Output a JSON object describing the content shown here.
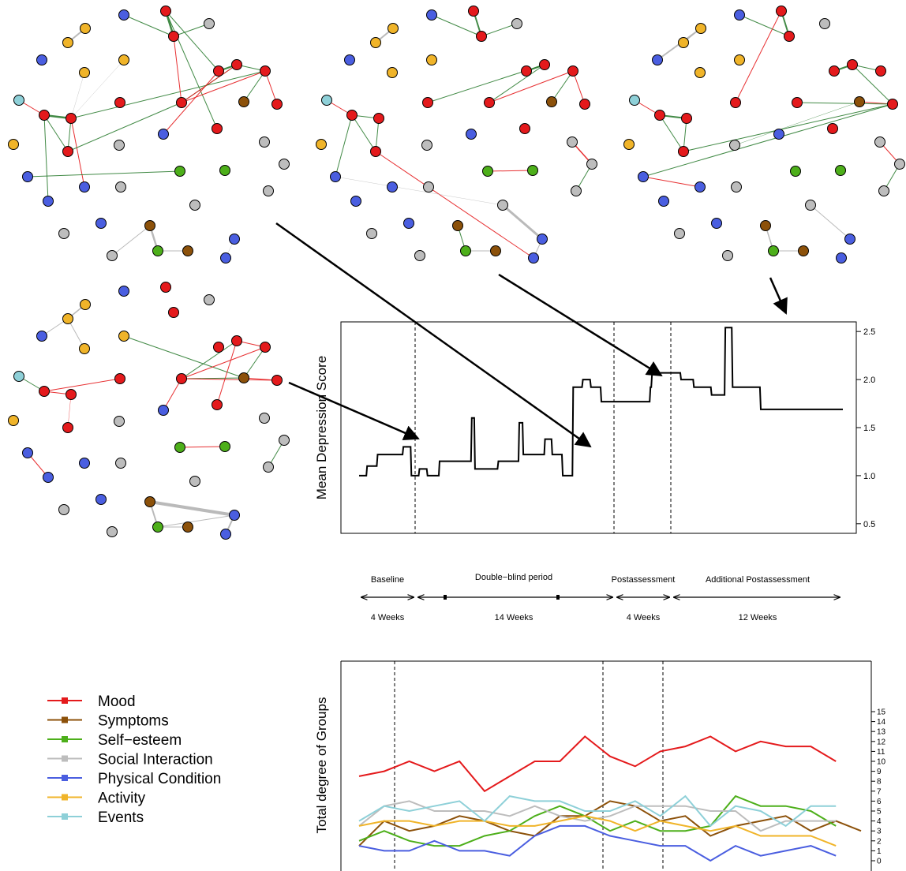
{
  "colors": {
    "Mood": "#e41a1c",
    "Symptoms": "#8c510a",
    "Self-esteem": "#4daf1a",
    "Social Interaction": "#bdbdbd",
    "Physical Condition": "#4a5ee0",
    "Activity": "#f0b429",
    "Events": "#8ed0d8",
    "edge_pos": "#2e7d32",
    "edge_neg": "#e41a1c",
    "edge_gray": "#b3b3b3"
  },
  "chart_data": [
    {
      "type": "line",
      "ylabel": "Mean Depression Score",
      "ylim": [
        0.4,
        2.6
      ],
      "yticks": [
        "0.5",
        "1.0",
        "1.5",
        "2.0",
        "2.5"
      ],
      "x": [
        0,
        9,
        10,
        22,
        23,
        54,
        55,
        64,
        65,
        74,
        75,
        84,
        85,
        99,
        100,
        139,
        140,
        143,
        144,
        158,
        159,
        172,
        173,
        183,
        184,
        198,
        199,
        203,
        204,
        230,
        231,
        239,
        240,
        252,
        253,
        265,
        266,
        277,
        278,
        287,
        288,
        300,
        301,
        361,
        362,
        363,
        364,
        399,
        400,
        415,
        416,
        437,
        438,
        440,
        441,
        454,
        455,
        463,
        464,
        498,
        499,
        517,
        518,
        534,
        535,
        563,
        564,
        582,
        583,
        601
      ],
      "y": [
        1.0,
        1.0,
        1.1,
        1.1,
        1.22,
        1.22,
        1.3,
        1.3,
        1.0,
        1.0,
        1.07,
        1.07,
        1.0,
        1.0,
        1.15,
        1.15,
        1.6,
        1.6,
        1.07,
        1.07,
        1.07,
        1.07,
        1.15,
        1.15,
        1.15,
        1.15,
        1.55,
        1.55,
        1.22,
        1.22,
        1.38,
        1.38,
        1.22,
        1.22,
        1.0,
        1.0,
        1.92,
        1.92,
        2.0,
        2.0,
        1.92,
        1.92,
        1.77,
        1.77,
        1.92,
        1.92,
        2.07,
        2.07,
        2.0,
        2.0,
        1.92,
        1.92,
        1.84,
        1.84,
        1.84,
        1.84,
        2.54,
        2.54,
        1.92,
        1.92,
        1.69,
        1.69,
        1.69,
        1.69,
        1.69,
        1.69,
        1.69,
        1.69,
        1.69,
        1.69
      ],
      "vlines": [
        2,
        12,
        15
      ],
      "xlim": [
        0,
        25
      ]
    },
    {
      "type": "line",
      "ylabel": "Total degree of Groups",
      "ylim": [
        -0.5,
        15.5
      ],
      "yticks": [
        "0",
        "1",
        "2",
        "3",
        "4",
        "5",
        "6",
        "7",
        "8",
        "9",
        "10",
        "11",
        "12",
        "13",
        "14",
        "15"
      ],
      "x": [
        0,
        1,
        2,
        3,
        4,
        5,
        6,
        7,
        8,
        9,
        10,
        11,
        12,
        13,
        14,
        15,
        16,
        17,
        18,
        19,
        20,
        21,
        22,
        23
      ],
      "vlines": [
        1.5,
        13.5,
        17
      ],
      "series": [
        {
          "name": "Mood",
          "values": [
            8.5,
            9,
            10,
            9,
            10,
            7,
            8.5,
            10,
            10,
            12.5,
            10.5,
            9.5,
            11,
            11.5,
            12.5,
            11,
            12,
            11.5,
            11.5,
            10,
            null,
            null,
            null,
            null
          ]
        },
        {
          "name": "Symptoms",
          "values": [
            1.5,
            4,
            3,
            3.5,
            4.5,
            4,
            3,
            2.5,
            4.5,
            4.5,
            6,
            5.5,
            4,
            4.5,
            2.5,
            3.5,
            4,
            4.5,
            3,
            4,
            3,
            null,
            null,
            null
          ]
        },
        {
          "name": "Self-esteem",
          "values": [
            2,
            3,
            2,
            1.5,
            1.5,
            2.5,
            3,
            4.5,
            5.5,
            4.5,
            3,
            4,
            3,
            3,
            3.5,
            6.5,
            5.5,
            5.5,
            5,
            3.5,
            null,
            null,
            null,
            null
          ]
        },
        {
          "name": "Social Interaction",
          "values": [
            3.5,
            5.5,
            6,
            5,
            5,
            5,
            4.5,
            5.5,
            4.5,
            4,
            4.5,
            5.5,
            5.5,
            5.5,
            5,
            5,
            3,
            4,
            4,
            4,
            null,
            null,
            null,
            null
          ]
        },
        {
          "name": "Physical Condition",
          "values": [
            1.5,
            1,
            1,
            2,
            1,
            1,
            0.5,
            2.5,
            3.5,
            3.5,
            2.5,
            2,
            1.5,
            1.5,
            0,
            1.5,
            0.5,
            1,
            1.5,
            0.5,
            null,
            null,
            null,
            null
          ]
        },
        {
          "name": "Activity",
          "values": [
            3.5,
            4,
            4,
            3.5,
            4,
            4,
            3.5,
            3.5,
            4,
            4.5,
            4,
            3,
            4,
            3.5,
            3,
            3.5,
            2.5,
            2.5,
            2.5,
            1.5,
            null,
            null,
            null,
            null
          ]
        },
        {
          "name": "Events",
          "values": [
            4,
            5.5,
            5,
            5.5,
            6,
            4,
            6.5,
            6,
            6,
            5,
            5,
            6,
            4.5,
            6.5,
            3.5,
            5.5,
            5,
            3.5,
            5.5,
            5.5,
            null,
            null,
            null,
            null
          ]
        }
      ]
    }
  ],
  "timeline": {
    "periods": [
      {
        "label": "Baseline",
        "duration": "4 Weeks"
      },
      {
        "label": "Double−blind period",
        "duration": "14 Weeks"
      },
      {
        "label": "Postassessment",
        "duration": "4 Weeks"
      },
      {
        "label": "Additional Postassessment",
        "duration": "12 Weeks"
      }
    ]
  },
  "legend": {
    "items": [
      "Mood",
      "Symptoms",
      "Self−esteem",
      "Social Interaction",
      "Physical Condition",
      "Activity",
      "Events"
    ]
  }
}
